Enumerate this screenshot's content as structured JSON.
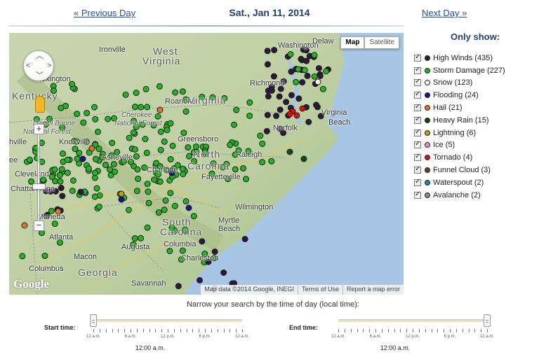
{
  "nav": {
    "prev_label": "« Previous Day",
    "date": "Sat., Jan 11, 2014",
    "next_label": "Next Day »"
  },
  "map": {
    "map_type_options": [
      "Map",
      "Satellite"
    ],
    "selected_map_type": "Map",
    "attribution": [
      "Map data ©2014 Google, INEGI",
      "Terms of Use",
      "Report a map error"
    ],
    "logo": "Google",
    "place_labels": [
      {
        "text": "Washington",
        "cls": ""
      },
      {
        "text": "Delaw",
        "cls": ""
      },
      {
        "text": "West",
        "cls": "big"
      },
      {
        "text": "Virginia",
        "cls": "big"
      },
      {
        "text": "Ironville",
        "cls": ""
      },
      {
        "text": "Lexington",
        "cls": ""
      },
      {
        "text": "Kentucky",
        "cls": "big"
      },
      {
        "text": "Richmond",
        "cls": ""
      },
      {
        "text": "Roanoke",
        "cls": ""
      },
      {
        "text": "Virginia",
        "cls": "big"
      },
      {
        "text": "Norfolk",
        "cls": ""
      },
      {
        "text": "Virginia",
        "cls": ""
      },
      {
        "text": "Beach",
        "cls": ""
      },
      {
        "text": "Daniel Boone",
        "cls": "italic"
      },
      {
        "text": "National Forest",
        "cls": "italic"
      },
      {
        "text": "Cherokee",
        "cls": "italic"
      },
      {
        "text": "National Forest",
        "cls": "italic"
      },
      {
        "text": "Knoxville",
        "cls": ""
      },
      {
        "text": "hville",
        "cls": ""
      },
      {
        "text": "Greensboro",
        "cls": ""
      },
      {
        "text": "North",
        "cls": "big"
      },
      {
        "text": "Raleigh",
        "cls": ""
      },
      {
        "text": "Carolina",
        "cls": "big"
      },
      {
        "text": "Asheville",
        "cls": ""
      },
      {
        "text": "Charlotte",
        "cls": ""
      },
      {
        "text": "Fayetteville",
        "cls": ""
      },
      {
        "text": "Cleveland",
        "cls": ""
      },
      {
        "text": "Chattanooga",
        "cls": ""
      },
      {
        "text": "Wilmington",
        "cls": ""
      },
      {
        "text": "South",
        "cls": "big"
      },
      {
        "text": "Carolina",
        "cls": "big"
      },
      {
        "text": "Columbia",
        "cls": ""
      },
      {
        "text": "Myrtle",
        "cls": ""
      },
      {
        "text": "Beach",
        "cls": ""
      },
      {
        "text": "Marietta",
        "cls": ""
      },
      {
        "text": "Atlanta",
        "cls": ""
      },
      {
        "text": "Augusta",
        "cls": ""
      },
      {
        "text": "Macon",
        "cls": ""
      },
      {
        "text": "Charleston",
        "cls": ""
      },
      {
        "text": "Georgia",
        "cls": "big"
      },
      {
        "text": "Columbus",
        "cls": ""
      },
      {
        "text": "Savannah",
        "cls": ""
      },
      {
        "text": "ee",
        "cls": ""
      }
    ]
  },
  "legend": {
    "title": "Only show:",
    "items": [
      {
        "label": "High Winds (435)",
        "color": "#2b1a3a",
        "checked": true
      },
      {
        "label": "Storm Damage (227)",
        "color": "#22b51e",
        "checked": true
      },
      {
        "label": "Snow (123)",
        "color": "#f2f2f2",
        "checked": true
      },
      {
        "label": "Flooding (24)",
        "color": "#14148c",
        "checked": true
      },
      {
        "label": "Hail (21)",
        "color": "#e0742a",
        "checked": true
      },
      {
        "label": "Heavy Rain (15)",
        "color": "#0f4a12",
        "checked": true
      },
      {
        "label": "Lightning (6)",
        "color": "#c29a14",
        "checked": true
      },
      {
        "label": "Ice (5)",
        "color": "#e58ad8",
        "checked": true
      },
      {
        "label": "Tornado (4)",
        "color": "#e00f0f",
        "checked": true
      },
      {
        "label": "Funnel Cloud (3)",
        "color": "#6a4025",
        "checked": true
      },
      {
        "label": "Waterspout (2)",
        "color": "#2b86a8",
        "checked": true
      },
      {
        "label": "Avalanche (2)",
        "color": "#8a8a8a",
        "checked": true
      }
    ]
  },
  "time_filter": {
    "instruction": "Narrow your search by the time of day (local time):",
    "tick_labels": [
      "12 a.m.",
      "6 a.m.",
      "12 p.m.",
      "6 p.m.",
      "12 a.m."
    ],
    "start": {
      "label": "Start time:",
      "value": "12:00 a.m.",
      "position": 0
    },
    "end": {
      "label": "End time:",
      "value": "12:00 a.m.",
      "position": 1
    }
  }
}
